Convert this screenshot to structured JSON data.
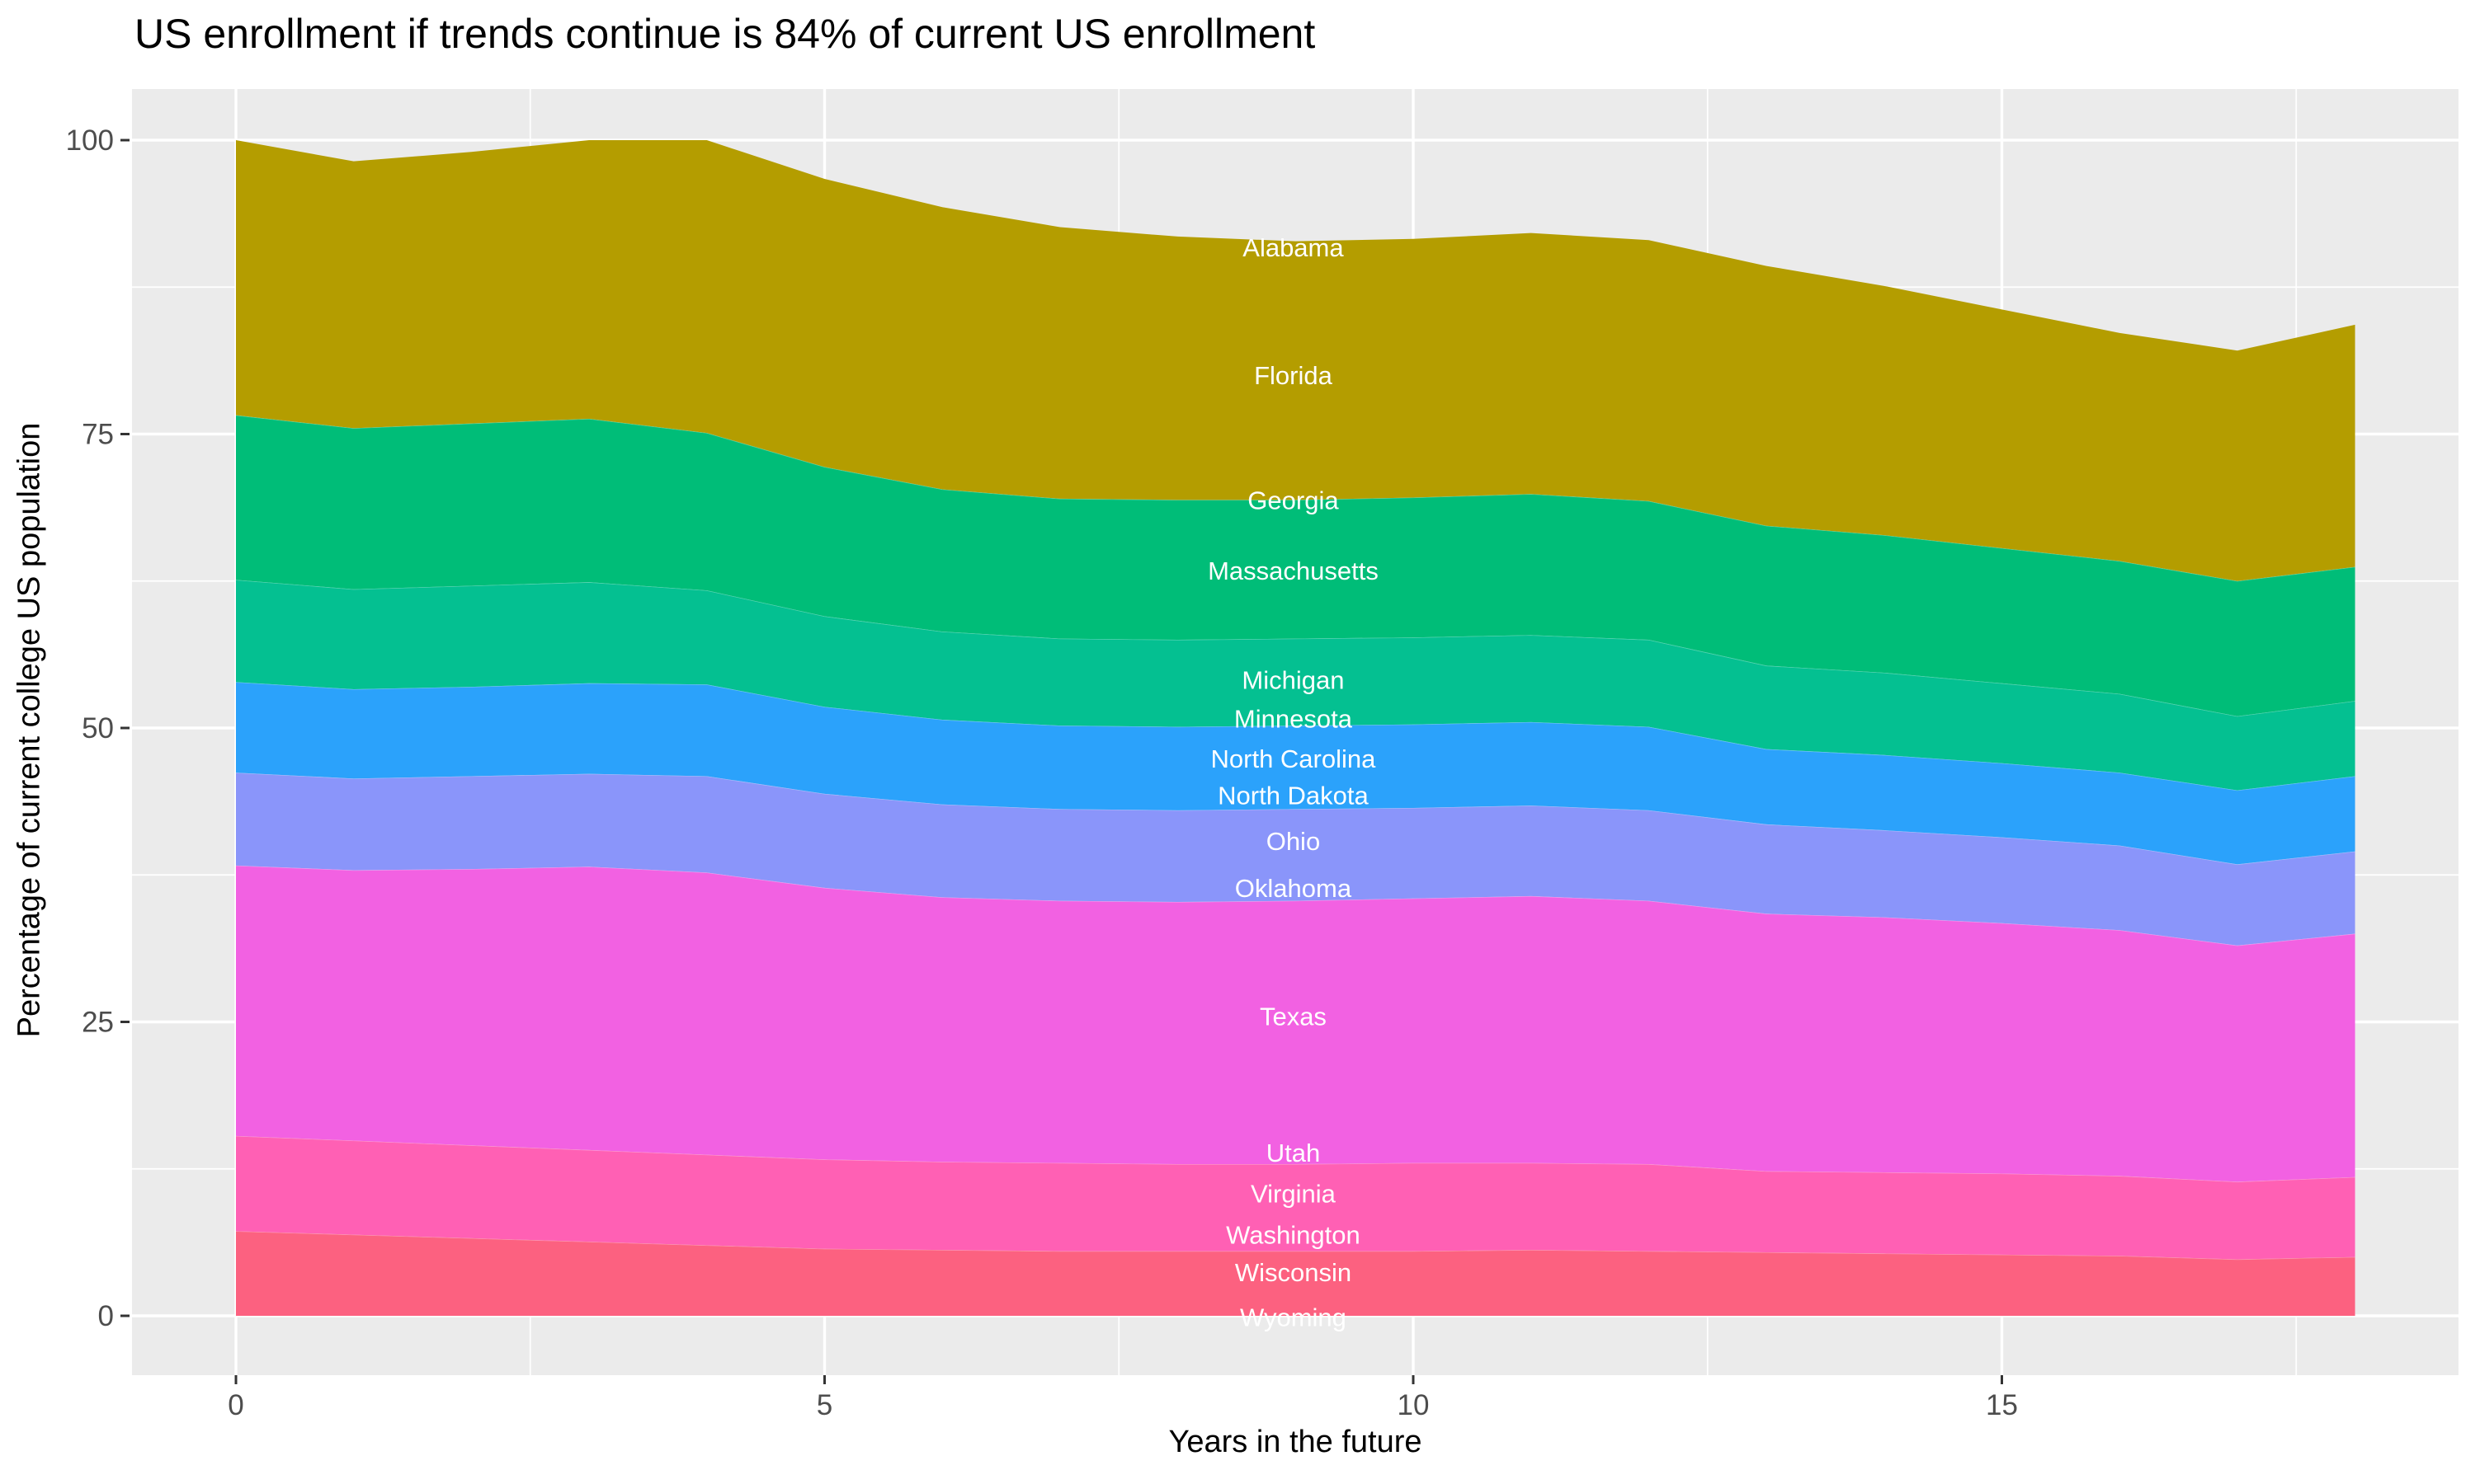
{
  "title": "US enrollment if trends continue is 84% of current US enrollment",
  "axes": {
    "x": {
      "title": "Years in the future",
      "tick_labels": [
        "0",
        "5",
        "10",
        "15"
      ],
      "tick_values": [
        0,
        5,
        10,
        15
      ],
      "minor_gridlines": [
        2.5,
        7.5,
        12.5,
        17.5
      ]
    },
    "y": {
      "title": "Percentage of current college US population",
      "tick_labels": [
        "0",
        "25",
        "50",
        "75",
        "100"
      ],
      "tick_values": [
        0,
        25,
        50,
        75,
        100
      ],
      "minor_gridlines": [
        12.5,
        37.5,
        62.5,
        87.5
      ]
    }
  },
  "chart_data": {
    "type": "area",
    "stacked": true,
    "title": "US enrollment if trends continue is 84% of current US enrollment",
    "xlabel": "Years in the future",
    "ylabel": "Percentage of current college US population",
    "xlim": [
      0,
      18
    ],
    "ylim": [
      0,
      100
    ],
    "grid": true,
    "legend_position": "none",
    "panel_bg": "#EBEBEB",
    "grid_color": "#FFFFFF",
    "tick_color": "#333333",
    "tick_label_color": "#4D4D4D",
    "area_label_color": "#FFFFFF",
    "x": [
      0,
      1,
      2,
      3,
      4,
      5,
      6,
      7,
      8,
      9,
      10,
      11,
      12,
      13,
      14,
      15,
      16,
      17,
      18
    ],
    "series": [
      {
        "name": "Wyoming",
        "color": "#FC6180",
        "values": [
          0,
          0,
          0,
          0,
          0,
          0,
          0,
          0,
          0,
          0,
          0,
          0,
          0,
          0,
          0,
          0,
          0,
          0,
          0
        ]
      },
      {
        "name": "Wisconsin",
        "color": "#FC6180",
        "values": [
          7.2,
          6.9,
          6.6,
          6.3,
          6.0,
          5.7,
          5.6,
          5.5,
          5.5,
          5.5,
          5.5,
          5.6,
          5.5,
          5.4,
          5.3,
          5.2,
          5.1,
          4.8,
          5.0
        ]
      },
      {
        "name": "Washington",
        "color": "#FF60B4",
        "values": [
          0,
          0,
          0,
          0,
          0,
          0,
          0,
          0,
          0,
          0,
          0,
          0,
          0,
          0,
          0,
          0,
          0,
          0,
          0
        ]
      },
      {
        "name": "Virginia",
        "color": "#FF60B4",
        "values": [
          8.1,
          8.0,
          7.9,
          7.8,
          7.7,
          7.6,
          7.5,
          7.5,
          7.4,
          7.4,
          7.5,
          7.4,
          7.4,
          6.9,
          6.9,
          6.9,
          6.8,
          6.6,
          6.8
        ]
      },
      {
        "name": "Utah",
        "color": "#F261E2",
        "values": [
          0,
          0,
          0,
          0,
          0,
          0,
          0,
          0,
          0,
          0,
          0,
          0,
          0,
          0,
          0,
          0,
          0,
          0,
          0
        ]
      },
      {
        "name": "Texas",
        "color": "#F261E2",
        "values": [
          23.0,
          23.0,
          23.5,
          24.1,
          24.0,
          23.1,
          22.5,
          22.3,
          22.3,
          22.4,
          22.5,
          22.7,
          22.4,
          21.9,
          21.7,
          21.3,
          20.9,
          20.1,
          20.7
        ]
      },
      {
        "name": "Oklahoma",
        "color": "#8A95FA",
        "values": [
          0,
          0,
          0,
          0,
          0,
          0,
          0,
          0,
          0,
          0,
          0,
          0,
          0,
          0,
          0,
          0,
          0,
          0,
          0
        ]
      },
      {
        "name": "Ohio",
        "color": "#8A95FA",
        "values": [
          7.9,
          7.8,
          7.9,
          7.9,
          8.2,
          8.0,
          7.9,
          7.8,
          7.8,
          7.8,
          7.7,
          7.7,
          7.7,
          7.6,
          7.4,
          7.3,
          7.2,
          6.9,
          7.0
        ]
      },
      {
        "name": "North Dakota",
        "color": "#2BA2FB",
        "values": [
          0,
          0,
          0,
          0,
          0,
          0,
          0,
          0,
          0,
          0,
          0,
          0,
          0,
          0,
          0,
          0,
          0,
          0,
          0
        ]
      },
      {
        "name": "North Carolina",
        "color": "#2BA2FB",
        "values": [
          7.7,
          7.6,
          7.6,
          7.7,
          7.8,
          7.4,
          7.2,
          7.1,
          7.1,
          7.1,
          7.1,
          7.1,
          7.1,
          6.4,
          6.4,
          6.3,
          6.2,
          6.3,
          6.4
        ]
      },
      {
        "name": "Minnesota",
        "color": "#04C091",
        "values": [
          0,
          0,
          0,
          0,
          0,
          0,
          0,
          0,
          0,
          0,
          0,
          0,
          0,
          0,
          0,
          0,
          0,
          0,
          0
        ]
      },
      {
        "name": "Michigan",
        "color": "#04C091",
        "values": [
          8.7,
          8.5,
          8.6,
          8.6,
          8.0,
          7.7,
          7.5,
          7.4,
          7.4,
          7.4,
          7.4,
          7.4,
          7.4,
          7.1,
          7.0,
          6.8,
          6.7,
          6.3,
          6.4
        ]
      },
      {
        "name": "Massachusetts",
        "color": "#00BD78",
        "values": [
          14.0,
          13.7,
          13.8,
          13.9,
          13.4,
          12.7,
          12.1,
          11.9,
          11.9,
          11.8,
          11.9,
          12.0,
          11.8,
          11.9,
          11.7,
          11.5,
          11.3,
          11.5,
          11.4
        ]
      },
      {
        "name": "Georgia",
        "color": "#00BD78",
        "values": [
          0,
          0,
          0,
          0,
          0,
          0,
          0,
          0,
          0,
          0,
          0,
          0,
          0,
          0,
          0,
          0,
          0,
          0,
          0
        ]
      },
      {
        "name": "Florida",
        "color": "#B49D00",
        "values": [
          23.4,
          22.7,
          23.1,
          23.7,
          24.9,
          24.5,
          24.0,
          23.1,
          22.4,
          22.0,
          22.0,
          22.2,
          22.2,
          22.1,
          21.2,
          20.3,
          19.4,
          19.6,
          20.6
        ]
      },
      {
        "name": "Alabama",
        "color": "#B49D00",
        "values": [
          0,
          0,
          0,
          0,
          0,
          0,
          0,
          0,
          0,
          0,
          0,
          0,
          0,
          0,
          0,
          0,
          0,
          0,
          0
        ]
      }
    ],
    "label_x": 8.98,
    "state_labels": [
      {
        "text": "Alabama",
        "y": 90.9
      },
      {
        "text": "Florida",
        "y": 80.0
      },
      {
        "text": "Georgia",
        "y": 69.4
      },
      {
        "text": "Massachusetts",
        "y": 63.4
      },
      {
        "text": "Michigan",
        "y": 54.1
      },
      {
        "text": "Minnesota",
        "y": 50.8
      },
      {
        "text": "North Carolina",
        "y": 47.4
      },
      {
        "text": "North Dakota",
        "y": 44.3
      },
      {
        "text": "Ohio",
        "y": 40.4
      },
      {
        "text": "Oklahoma",
        "y": 36.4
      },
      {
        "text": "Texas",
        "y": 25.5
      },
      {
        "text": "Utah",
        "y": 13.9
      },
      {
        "text": "Virginia",
        "y": 10.4
      },
      {
        "text": "Washington",
        "y": 6.9
      },
      {
        "text": "Wisconsin",
        "y": 3.7
      },
      {
        "text": "Wyoming",
        "y": -0.1
      }
    ]
  }
}
